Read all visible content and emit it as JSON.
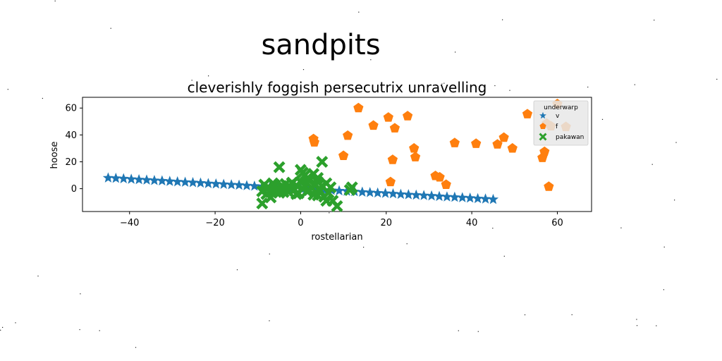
{
  "figure": {
    "suptitle": "sandpits",
    "background": "#ffffff",
    "noise_color": "#222222"
  },
  "chart_data": {
    "type": "scatter",
    "title": "cleverishly foggish persecutrix unravelling",
    "xlabel": "rostellarian",
    "ylabel": "hoose",
    "xlim": [
      -51,
      68
    ],
    "ylim": [
      -17,
      68
    ],
    "xticks": [
      -40,
      -20,
      0,
      20,
      40,
      60
    ],
    "yticks": [
      0,
      20,
      40,
      60
    ],
    "grid": false,
    "legend": {
      "title": "underwarp",
      "placement": "top-right"
    },
    "series": [
      {
        "name": "v",
        "marker": "star",
        "color": "#1f77b4",
        "x": [
          -45.0,
          -43.2,
          -41.4,
          -39.6,
          -37.8,
          -36.0,
          -34.2,
          -32.4,
          -30.6,
          -28.8,
          -27.0,
          -25.2,
          -23.4,
          -21.6,
          -19.8,
          -18.0,
          -16.2,
          -14.4,
          -12.6,
          -10.8,
          -9.0,
          -7.2,
          -5.4,
          -3.6,
          -1.8,
          0.0,
          1.8,
          3.6,
          5.4,
          7.2,
          9.0,
          10.8,
          12.6,
          14.4,
          16.2,
          18.0,
          19.8,
          21.6,
          23.4,
          25.2,
          27.0,
          28.8,
          30.6,
          32.4,
          34.2,
          36.0,
          37.8,
          39.6,
          41.4,
          43.2,
          45.0
        ],
        "y": [
          8.0,
          7.7,
          7.4,
          7.0,
          6.7,
          6.4,
          6.1,
          5.8,
          5.4,
          5.1,
          4.8,
          4.5,
          4.2,
          3.8,
          3.5,
          3.2,
          2.9,
          2.6,
          2.2,
          1.9,
          1.6,
          1.3,
          1.0,
          0.6,
          0.3,
          0.0,
          -0.3,
          -0.6,
          -1.0,
          -1.3,
          -1.6,
          -1.9,
          -2.2,
          -2.6,
          -2.9,
          -3.2,
          -3.5,
          -3.8,
          -4.2,
          -4.5,
          -4.8,
          -5.1,
          -5.4,
          -5.8,
          -6.1,
          -6.4,
          -6.7,
          -7.0,
          -7.4,
          -7.7,
          -8.0
        ]
      },
      {
        "name": "f",
        "marker": "pentagon",
        "color": "#ff7f0e",
        "x": [
          3.0,
          3.2,
          10.0,
          11.0,
          13.5,
          17.0,
          20.5,
          21.0,
          21.5,
          22.0,
          25.0,
          26.5,
          26.8,
          31.5,
          32.5,
          34.0,
          36.0,
          41.0,
          46.0,
          47.5,
          49.5,
          53.0,
          56.5,
          57.0,
          57.5,
          58.0,
          58.5,
          60.0,
          62.0
        ],
        "y": [
          37.0,
          34.5,
          24.5,
          39.5,
          60.0,
          47.0,
          53.0,
          5.0,
          21.5,
          45.0,
          54.0,
          30.0,
          23.5,
          9.5,
          8.5,
          3.0,
          34.0,
          33.5,
          33.0,
          38.0,
          30.0,
          55.5,
          23.0,
          27.5,
          48.5,
          1.5,
          46.5,
          63.0,
          46.0
        ]
      },
      {
        "name": "pakawan",
        "marker": "x-filled",
        "color": "#2ca02c",
        "x": [
          -9.0,
          -8.5,
          -8.0,
          -7.5,
          -7.0,
          -6.5,
          -6.0,
          -5.5,
          -5.0,
          -4.5,
          -4.0,
          -3.5,
          -3.0,
          -2.5,
          -2.0,
          -1.5,
          -1.0,
          -0.5,
          0.0,
          0.5,
          1.0,
          1.5,
          2.0,
          2.5,
          3.0,
          3.5,
          4.0,
          4.5,
          5.0,
          5.5,
          6.0,
          6.5,
          7.0,
          -8.0,
          -6.0,
          -4.0,
          -2.0,
          0.0,
          2.0,
          4.0,
          6.0,
          -5.0,
          5.0,
          0.5,
          1.5,
          -1.0,
          3.0,
          -7.0,
          8.5,
          11.5,
          12.0,
          7.5,
          -9.0,
          4.0
        ],
        "y": [
          -2.0,
          3.0,
          -4.0,
          1.0,
          -2.5,
          4.0,
          -1.5,
          0.5,
          -3.0,
          2.0,
          -0.5,
          3.5,
          -2.0,
          1.5,
          4.5,
          -1.0,
          2.5,
          -3.5,
          5.0,
          0.0,
          10.0,
          -2.0,
          6.0,
          1.0,
          -4.5,
          3.0,
          8.0,
          -1.5,
          2.0,
          -6.0,
          4.0,
          -3.0,
          1.0,
          0.0,
          2.5,
          -2.5,
          4.0,
          14.0,
          -1.0,
          5.0,
          -9.0,
          16.0,
          20.0,
          12.0,
          7.5,
          -4.0,
          11.0,
          -6.5,
          -13.0,
          -1.0,
          1.0,
          -9.0,
          -11.0,
          -5.0
        ]
      }
    ]
  }
}
